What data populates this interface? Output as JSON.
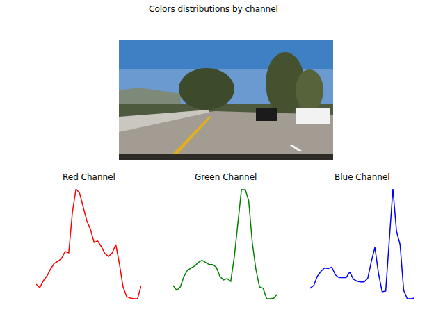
{
  "title": "Colors distributions by channel",
  "chart_data": [
    {
      "type": "line",
      "title": "Red Channel",
      "color": "red",
      "tick_labels": false,
      "grid": false,
      "x": [
        0,
        1,
        2,
        3,
        4,
        5,
        6,
        7,
        8,
        9,
        10,
        11,
        12,
        13,
        14,
        15,
        16,
        17,
        18,
        19,
        20,
        21,
        22,
        23,
        24,
        25,
        26,
        27,
        28,
        29
      ],
      "values": [
        31,
        26,
        36,
        43,
        53,
        61,
        64,
        68,
        78,
        76,
        134,
        168,
        162,
        142,
        122,
        110,
        91,
        93,
        85,
        75,
        71,
        76,
        88,
        60,
        27,
        13,
        11,
        10,
        10,
        29
      ],
      "xlim": [
        0,
        29
      ],
      "ylim": [
        10,
        168
      ]
    },
    {
      "type": "line",
      "title": "Green Channel",
      "color": "green",
      "tick_labels": false,
      "grid": false,
      "x": [
        0,
        1,
        2,
        3,
        4,
        5,
        6,
        7,
        8,
        9,
        10,
        11,
        12,
        13,
        14,
        15,
        16,
        17,
        18,
        19,
        20,
        21,
        22,
        23,
        24,
        25,
        26,
        27,
        28,
        29
      ],
      "values": [
        29,
        22,
        27,
        42,
        51,
        54,
        57,
        62,
        65,
        62,
        59,
        59,
        55,
        42,
        37,
        39,
        35,
        70,
        122,
        167,
        167,
        150,
        90,
        52,
        27,
        25,
        10,
        10,
        11,
        17
      ],
      "xlim": [
        0,
        29
      ],
      "ylim": [
        10,
        167
      ]
    },
    {
      "type": "line",
      "title": "Blue Channel",
      "color": "blue",
      "tick_labels": false,
      "grid": false,
      "x": [
        0,
        1,
        2,
        3,
        4,
        5,
        6,
        7,
        8,
        9,
        10,
        11,
        12,
        13,
        14,
        15,
        16,
        17,
        18,
        19,
        20,
        21,
        22,
        23,
        24,
        25,
        26,
        27,
        28,
        29
      ],
      "values": [
        27,
        31,
        44,
        51,
        56,
        55,
        57,
        46,
        42,
        42,
        42,
        50,
        40,
        37,
        36,
        36,
        41,
        65,
        85,
        48,
        22,
        23,
        100,
        168,
        108,
        89,
        24,
        12,
        12,
        13
      ],
      "xlim": [
        0,
        29
      ],
      "ylim": [
        12,
        168
      ]
    }
  ]
}
